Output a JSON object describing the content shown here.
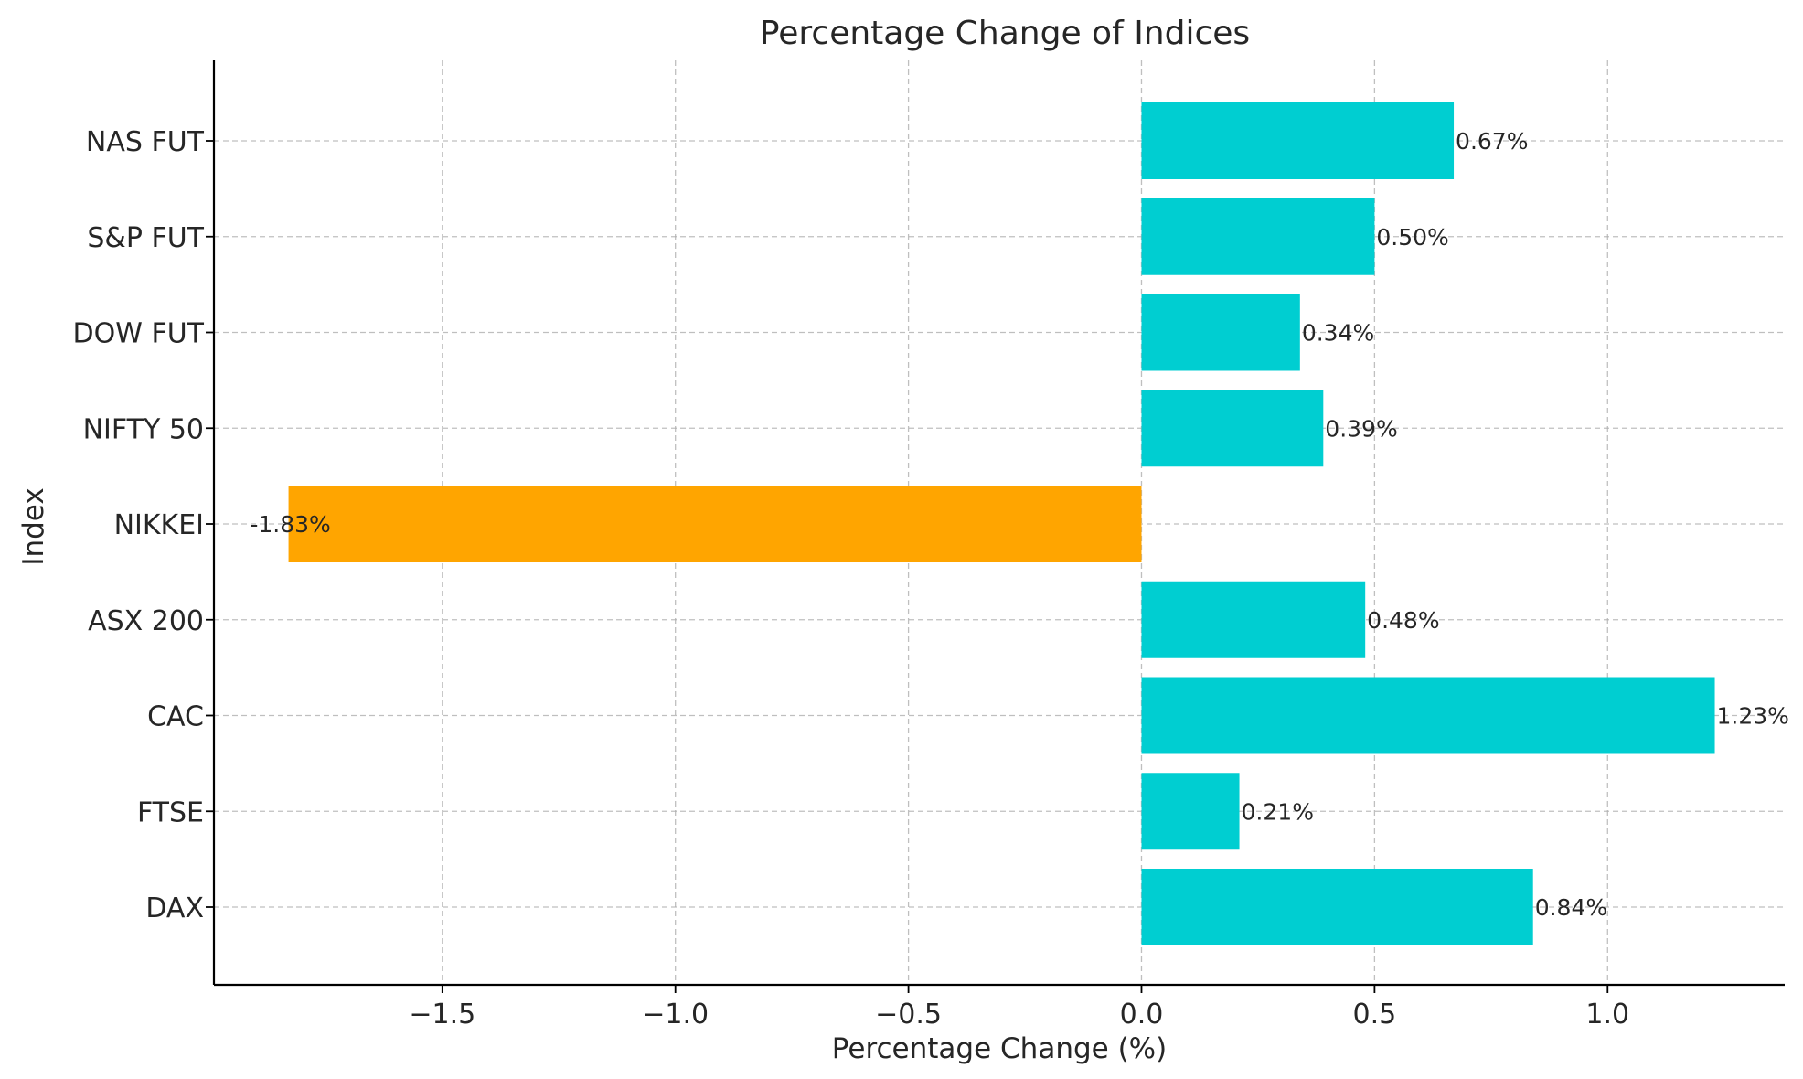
{
  "chart_data": {
    "type": "bar",
    "orientation": "horizontal",
    "title": "Percentage Change of Indices",
    "xlabel": "Percentage Change (%)",
    "ylabel": "Index",
    "categories": [
      "DAX",
      "FTSE",
      "CAC",
      "ASX 200",
      "NIKKEI",
      "NIFTY 50",
      "DOW FUT",
      "S&P FUT",
      "NAS FUT"
    ],
    "values": [
      0.84,
      0.21,
      1.23,
      0.48,
      -1.83,
      0.39,
      0.34,
      0.5,
      0.67
    ],
    "data_labels": [
      "0.84%",
      "0.21%",
      "1.23%",
      "0.48%",
      "-1.83%",
      "0.39%",
      "0.34%",
      "0.50%",
      "0.67%"
    ],
    "xlim": [
      -1.99,
      1.38
    ],
    "xticks": [
      -1.5,
      -1.0,
      -0.5,
      0.0,
      0.5,
      1.0
    ],
    "xtick_labels": [
      "−1.5",
      "−1.0",
      "−0.5",
      "0.0",
      "0.5",
      "1.0"
    ],
    "grid": true,
    "colors": {
      "positive": "#00CED1",
      "negative": "#FFA500"
    }
  }
}
